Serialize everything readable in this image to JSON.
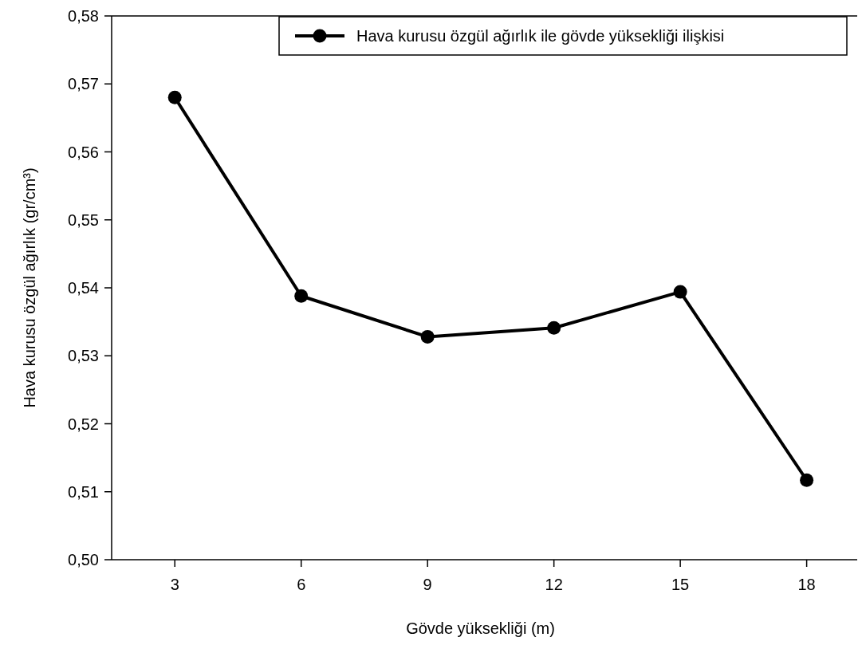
{
  "chart_data": {
    "type": "line",
    "xlabel": "Gövde yüksekliği (m)",
    "ylabel": "Hava kurusu özgül ağırlık (gr/cm³)",
    "x": [
      3,
      6,
      9,
      12,
      15,
      18
    ],
    "series": [
      {
        "name": "Hava kurusu özgül ağırlık ile gövde yüksekliği ilişkisi",
        "color": "#000000",
        "values": [
          0.568,
          0.5388,
          0.5328,
          0.5341,
          0.5394,
          0.5117
        ]
      }
    ],
    "xlim": [
      1.5,
      19.2
    ],
    "xticks": [
      3,
      6,
      9,
      12,
      15,
      18
    ],
    "ylim": [
      0.5,
      0.58
    ],
    "yticks": [
      {
        "value": 0.5,
        "label": "0,50"
      },
      {
        "value": 0.51,
        "label": "0,51"
      },
      {
        "value": 0.52,
        "label": "0,52"
      },
      {
        "value": 0.53,
        "label": "0,53"
      },
      {
        "value": 0.54,
        "label": "0,54"
      },
      {
        "value": 0.55,
        "label": "0,55"
      },
      {
        "value": 0.56,
        "label": "0,56"
      },
      {
        "value": 0.57,
        "label": "0,57"
      },
      {
        "value": 0.58,
        "label": "0,58"
      }
    ],
    "legend": "top right",
    "marker": "circle",
    "line_style": "solid",
    "grid": false
  }
}
